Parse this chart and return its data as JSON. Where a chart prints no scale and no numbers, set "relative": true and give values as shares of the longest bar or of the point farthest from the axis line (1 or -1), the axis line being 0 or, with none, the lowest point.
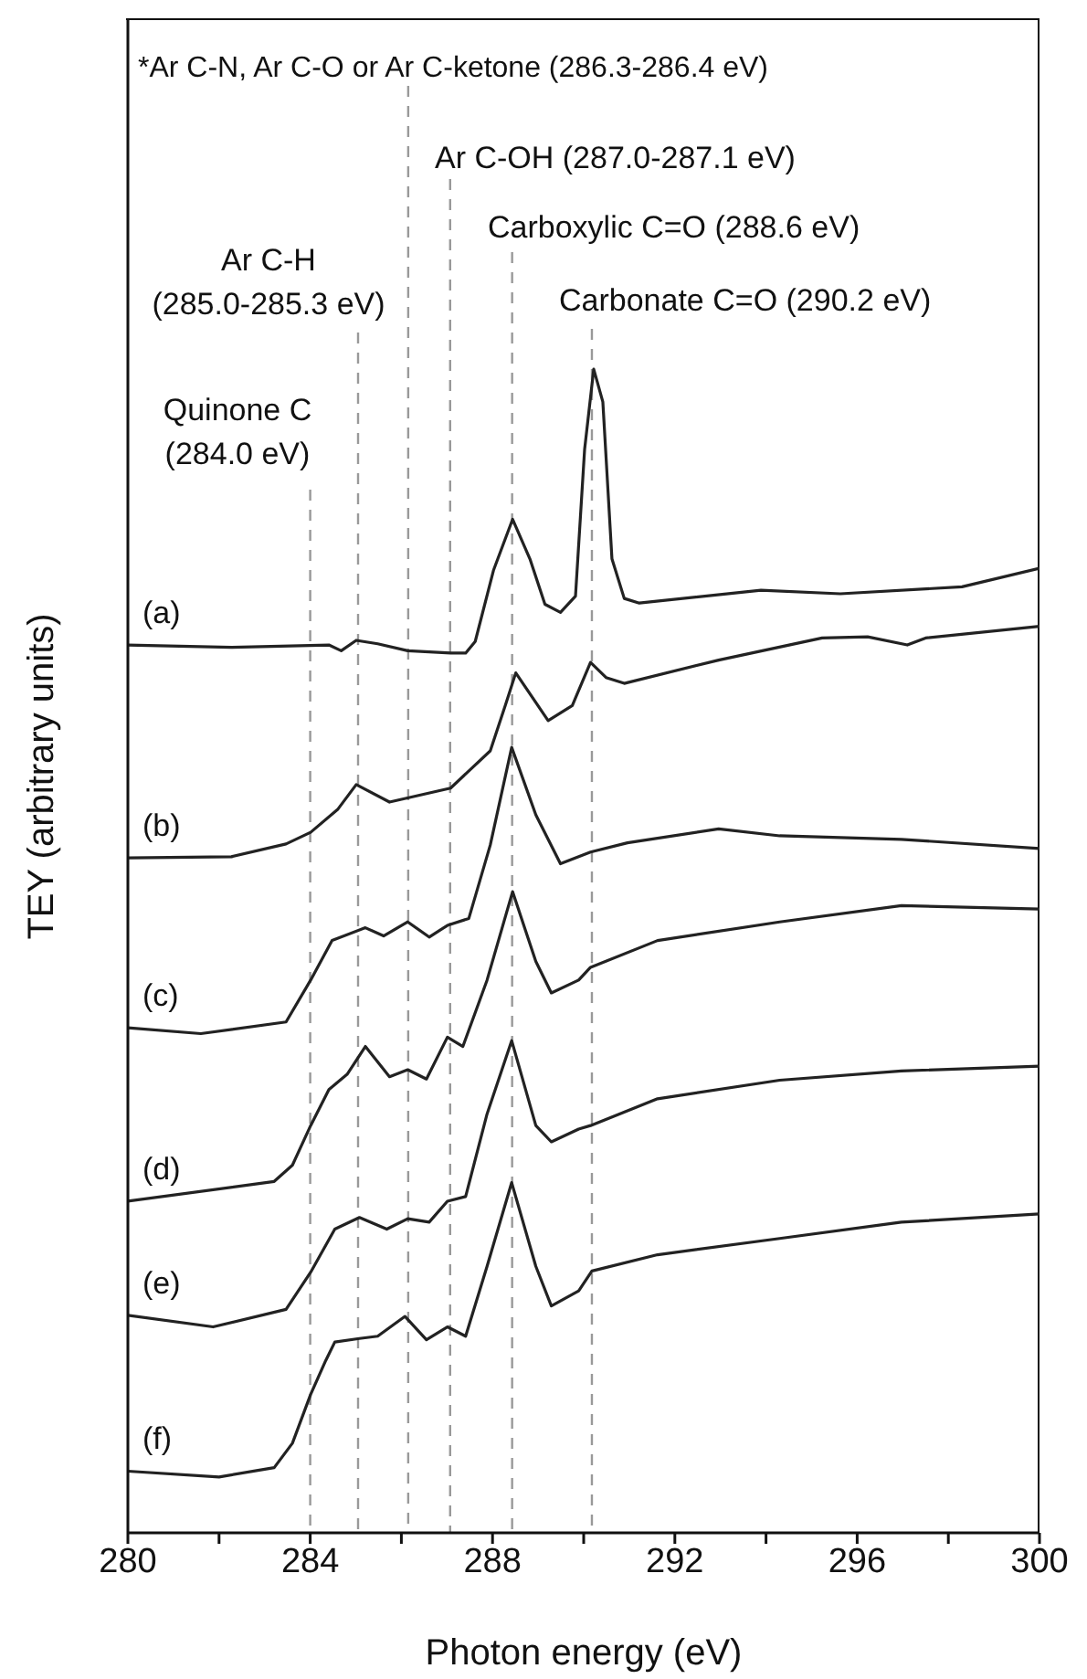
{
  "chart_data": {
    "type": "line",
    "xlabel": "Photon energy (eV)",
    "ylabel": "TEY (arbitrary units)",
    "relative": true,
    "xlim": [
      280,
      300
    ],
    "xticks": [
      280,
      {
        "value": 282,
        "label": null
      },
      284,
      {
        "value": 286,
        "label": null
      },
      288,
      {
        "value": 290,
        "label": null
      },
      292,
      {
        "value": 294,
        "label": null
      },
      296,
      {
        "value": 298,
        "label": null
      },
      300
    ],
    "series": [
      {
        "name": "(a)",
        "color": "#222222",
        "x": [
          280,
          282.27,
          284.41,
          284.68,
          285.01,
          285.48,
          286.14,
          287.08,
          287.41,
          287.62,
          288.02,
          288.44,
          288.82,
          289.15,
          289.49,
          289.82,
          290.02,
          290.22,
          290.42,
          290.62,
          290.89,
          291.22,
          293.89,
          295.63,
          298.3,
          300
        ],
        "values": [
          0.763,
          0.761,
          0.763,
          0.758,
          0.767,
          0.764,
          0.758,
          0.756,
          0.756,
          0.766,
          0.827,
          0.871,
          0.837,
          0.798,
          0.791,
          0.805,
          0.931,
          1.0,
          0.972,
          0.837,
          0.803,
          0.799,
          0.81,
          0.807,
          0.813,
          0.829
        ]
      },
      {
        "name": "(b)",
        "color": "#222222",
        "x": [
          280,
          282.27,
          283.47,
          284.01,
          284.61,
          285.01,
          285.74,
          287.08,
          287.95,
          288.28,
          288.51,
          289.22,
          289.75,
          290.15,
          290.49,
          290.89,
          292.96,
          295.23,
          296.23,
          297.1,
          297.5,
          300
        ],
        "values": [
          0.58,
          0.581,
          0.592,
          0.602,
          0.622,
          0.643,
          0.628,
          0.64,
          0.672,
          0.711,
          0.739,
          0.698,
          0.711,
          0.748,
          0.735,
          0.73,
          0.75,
          0.769,
          0.77,
          0.763,
          0.769,
          0.779
        ]
      },
      {
        "name": "(c)",
        "color": "#222222",
        "x": [
          280,
          281.6,
          283.47,
          284.01,
          284.48,
          285.21,
          285.61,
          286.14,
          286.61,
          287.01,
          287.48,
          287.95,
          288.42,
          288.95,
          289.49,
          290.15,
          290.96,
          292.96,
          294.3,
          296.97,
          300
        ],
        "values": [
          0.434,
          0.429,
          0.439,
          0.475,
          0.509,
          0.52,
          0.513,
          0.525,
          0.512,
          0.522,
          0.528,
          0.591,
          0.675,
          0.617,
          0.575,
          0.585,
          0.593,
          0.605,
          0.599,
          0.596,
          0.588
        ]
      },
      {
        "name": "(d)",
        "color": "#222222",
        "x": [
          280,
          283.21,
          283.61,
          284.01,
          284.41,
          284.81,
          285.21,
          285.74,
          286.14,
          286.55,
          287.01,
          287.35,
          287.88,
          288.44,
          288.95,
          289.29,
          289.89,
          290.15,
          291.62,
          294.3,
          296.97,
          300
        ],
        "values": [
          0.285,
          0.302,
          0.316,
          0.35,
          0.381,
          0.394,
          0.418,
          0.392,
          0.398,
          0.39,
          0.426,
          0.418,
          0.475,
          0.551,
          0.491,
          0.464,
          0.475,
          0.486,
          0.509,
          0.525,
          0.539,
          0.536
        ]
      },
      {
        "name": "(e)",
        "color": "#222222",
        "x": [
          280,
          281.87,
          283.47,
          284.01,
          284.54,
          285.08,
          285.68,
          286.14,
          286.61,
          287.01,
          287.41,
          287.88,
          288.42,
          288.95,
          289.29,
          289.89,
          290.15,
          291.62,
          294.3,
          296.97,
          300
        ],
        "values": [
          0.187,
          0.177,
          0.192,
          0.224,
          0.261,
          0.271,
          0.261,
          0.27,
          0.267,
          0.285,
          0.289,
          0.36,
          0.423,
          0.35,
          0.336,
          0.347,
          0.35,
          0.373,
          0.389,
          0.397,
          0.401
        ]
      },
      {
        "name": "(f)",
        "color": "#222222",
        "x": [
          280,
          282.0,
          283.21,
          283.61,
          284.01,
          284.34,
          284.54,
          285.08,
          285.48,
          286.08,
          286.55,
          287.01,
          287.41,
          287.88,
          288.42,
          288.95,
          289.29,
          289.89,
          290.18,
          291.62,
          294.3,
          296.97,
          300
        ],
        "values": [
          0.053,
          0.048,
          0.056,
          0.077,
          0.119,
          0.148,
          0.164,
          0.167,
          0.169,
          0.186,
          0.166,
          0.177,
          0.169,
          0.229,
          0.301,
          0.229,
          0.195,
          0.208,
          0.225,
          0.239,
          0.253,
          0.267,
          0.274
        ]
      }
    ],
    "ref_lines": [
      {
        "axis": "x",
        "value": 284.0,
        "label": "Quinone C (284.0 eV)",
        "color": "#999999",
        "line_style": "dashed"
      },
      {
        "axis": "x",
        "value": 285.05,
        "label": "Ar C-H (285.0-285.3 eV)",
        "color": "#999999",
        "line_style": "dashed"
      },
      {
        "axis": "x",
        "value": 286.15,
        "label": "*Ar C-N, Ar C-O  or Ar C-ketone (286.3-286.4 eV)",
        "color": "#999999",
        "line_style": "dashed"
      },
      {
        "axis": "x",
        "value": 287.07,
        "label": "Ar C-OH (287.0-287.1 eV)",
        "color": "#999999",
        "line_style": "dashed"
      },
      {
        "axis": "x",
        "value": 288.43,
        "label": "Carboxylic C=O (288.6 eV)",
        "color": "#999999",
        "line_style": "dashed"
      },
      {
        "axis": "x",
        "value": 290.18,
        "label": "Carbonate C=O (290.2 eV)",
        "color": "#999999",
        "line_style": "dashed"
      }
    ]
  }
}
